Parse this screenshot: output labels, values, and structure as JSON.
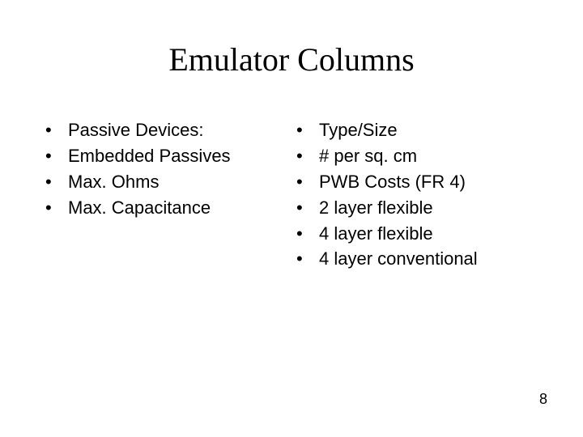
{
  "slide": {
    "title": "Emulator Columns",
    "page_number": "8",
    "bullet_char": "•",
    "background_color": "#ffffff",
    "text_color": "#000000",
    "title_font": "Times New Roman",
    "body_font": "Arial",
    "title_fontsize": 40,
    "body_fontsize": 22,
    "pagenum_fontsize": 18
  },
  "left_column": {
    "items": [
      "Passive Devices:",
      "Embedded Passives",
      "Max. Ohms",
      "Max. Capacitance"
    ]
  },
  "right_column": {
    "items": [
      "Type/Size",
      "# per sq. cm",
      "PWB Costs (FR 4)",
      "2 layer flexible",
      "4 layer flexible",
      "4 layer conventional"
    ]
  }
}
